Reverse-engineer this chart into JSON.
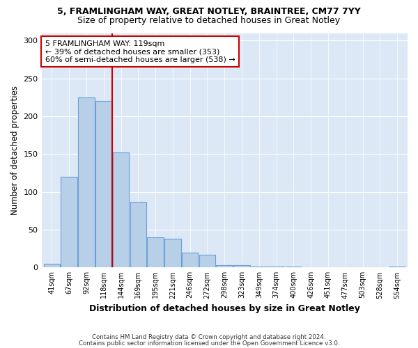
{
  "title1": "5, FRAMLINGHAM WAY, GREAT NOTLEY, BRAINTREE, CM77 7YY",
  "title2": "Size of property relative to detached houses in Great Notley",
  "xlabel": "Distribution of detached houses by size in Great Notley",
  "ylabel": "Number of detached properties",
  "footnote1": "Contains HM Land Registry data © Crown copyright and database right 2024.",
  "footnote2": "Contains public sector information licensed under the Open Government Licence v3.0.",
  "bin_labels": [
    "41sqm",
    "67sqm",
    "92sqm",
    "118sqm",
    "144sqm",
    "169sqm",
    "195sqm",
    "221sqm",
    "246sqm",
    "272sqm",
    "298sqm",
    "323sqm",
    "349sqm",
    "374sqm",
    "400sqm",
    "426sqm",
    "451sqm",
    "477sqm",
    "503sqm",
    "528sqm",
    "554sqm"
  ],
  "bar_heights": [
    5,
    120,
    225,
    220,
    152,
    87,
    40,
    38,
    20,
    17,
    3,
    3,
    1,
    1,
    1,
    0,
    0,
    0,
    0,
    0,
    1
  ],
  "bar_color": "#b8cfe8",
  "bar_edge_color": "#6a9fd8",
  "property_line_color": "#cc0000",
  "annotation_text": "5 FRAMLINGHAM WAY: 119sqm\n← 39% of detached houses are smaller (353)\n60% of semi-detached houses are larger (538) →",
  "annotation_box_facecolor": "#ffffff",
  "annotation_box_edgecolor": "#cc0000",
  "ylim": [
    0,
    310
  ],
  "yticks": [
    0,
    50,
    100,
    150,
    200,
    250,
    300
  ],
  "plot_bg_color": "#dce8f5",
  "title1_fontsize": 9,
  "title2_fontsize": 9,
  "ylabel_fontsize": 8.5,
  "xlabel_fontsize": 9
}
